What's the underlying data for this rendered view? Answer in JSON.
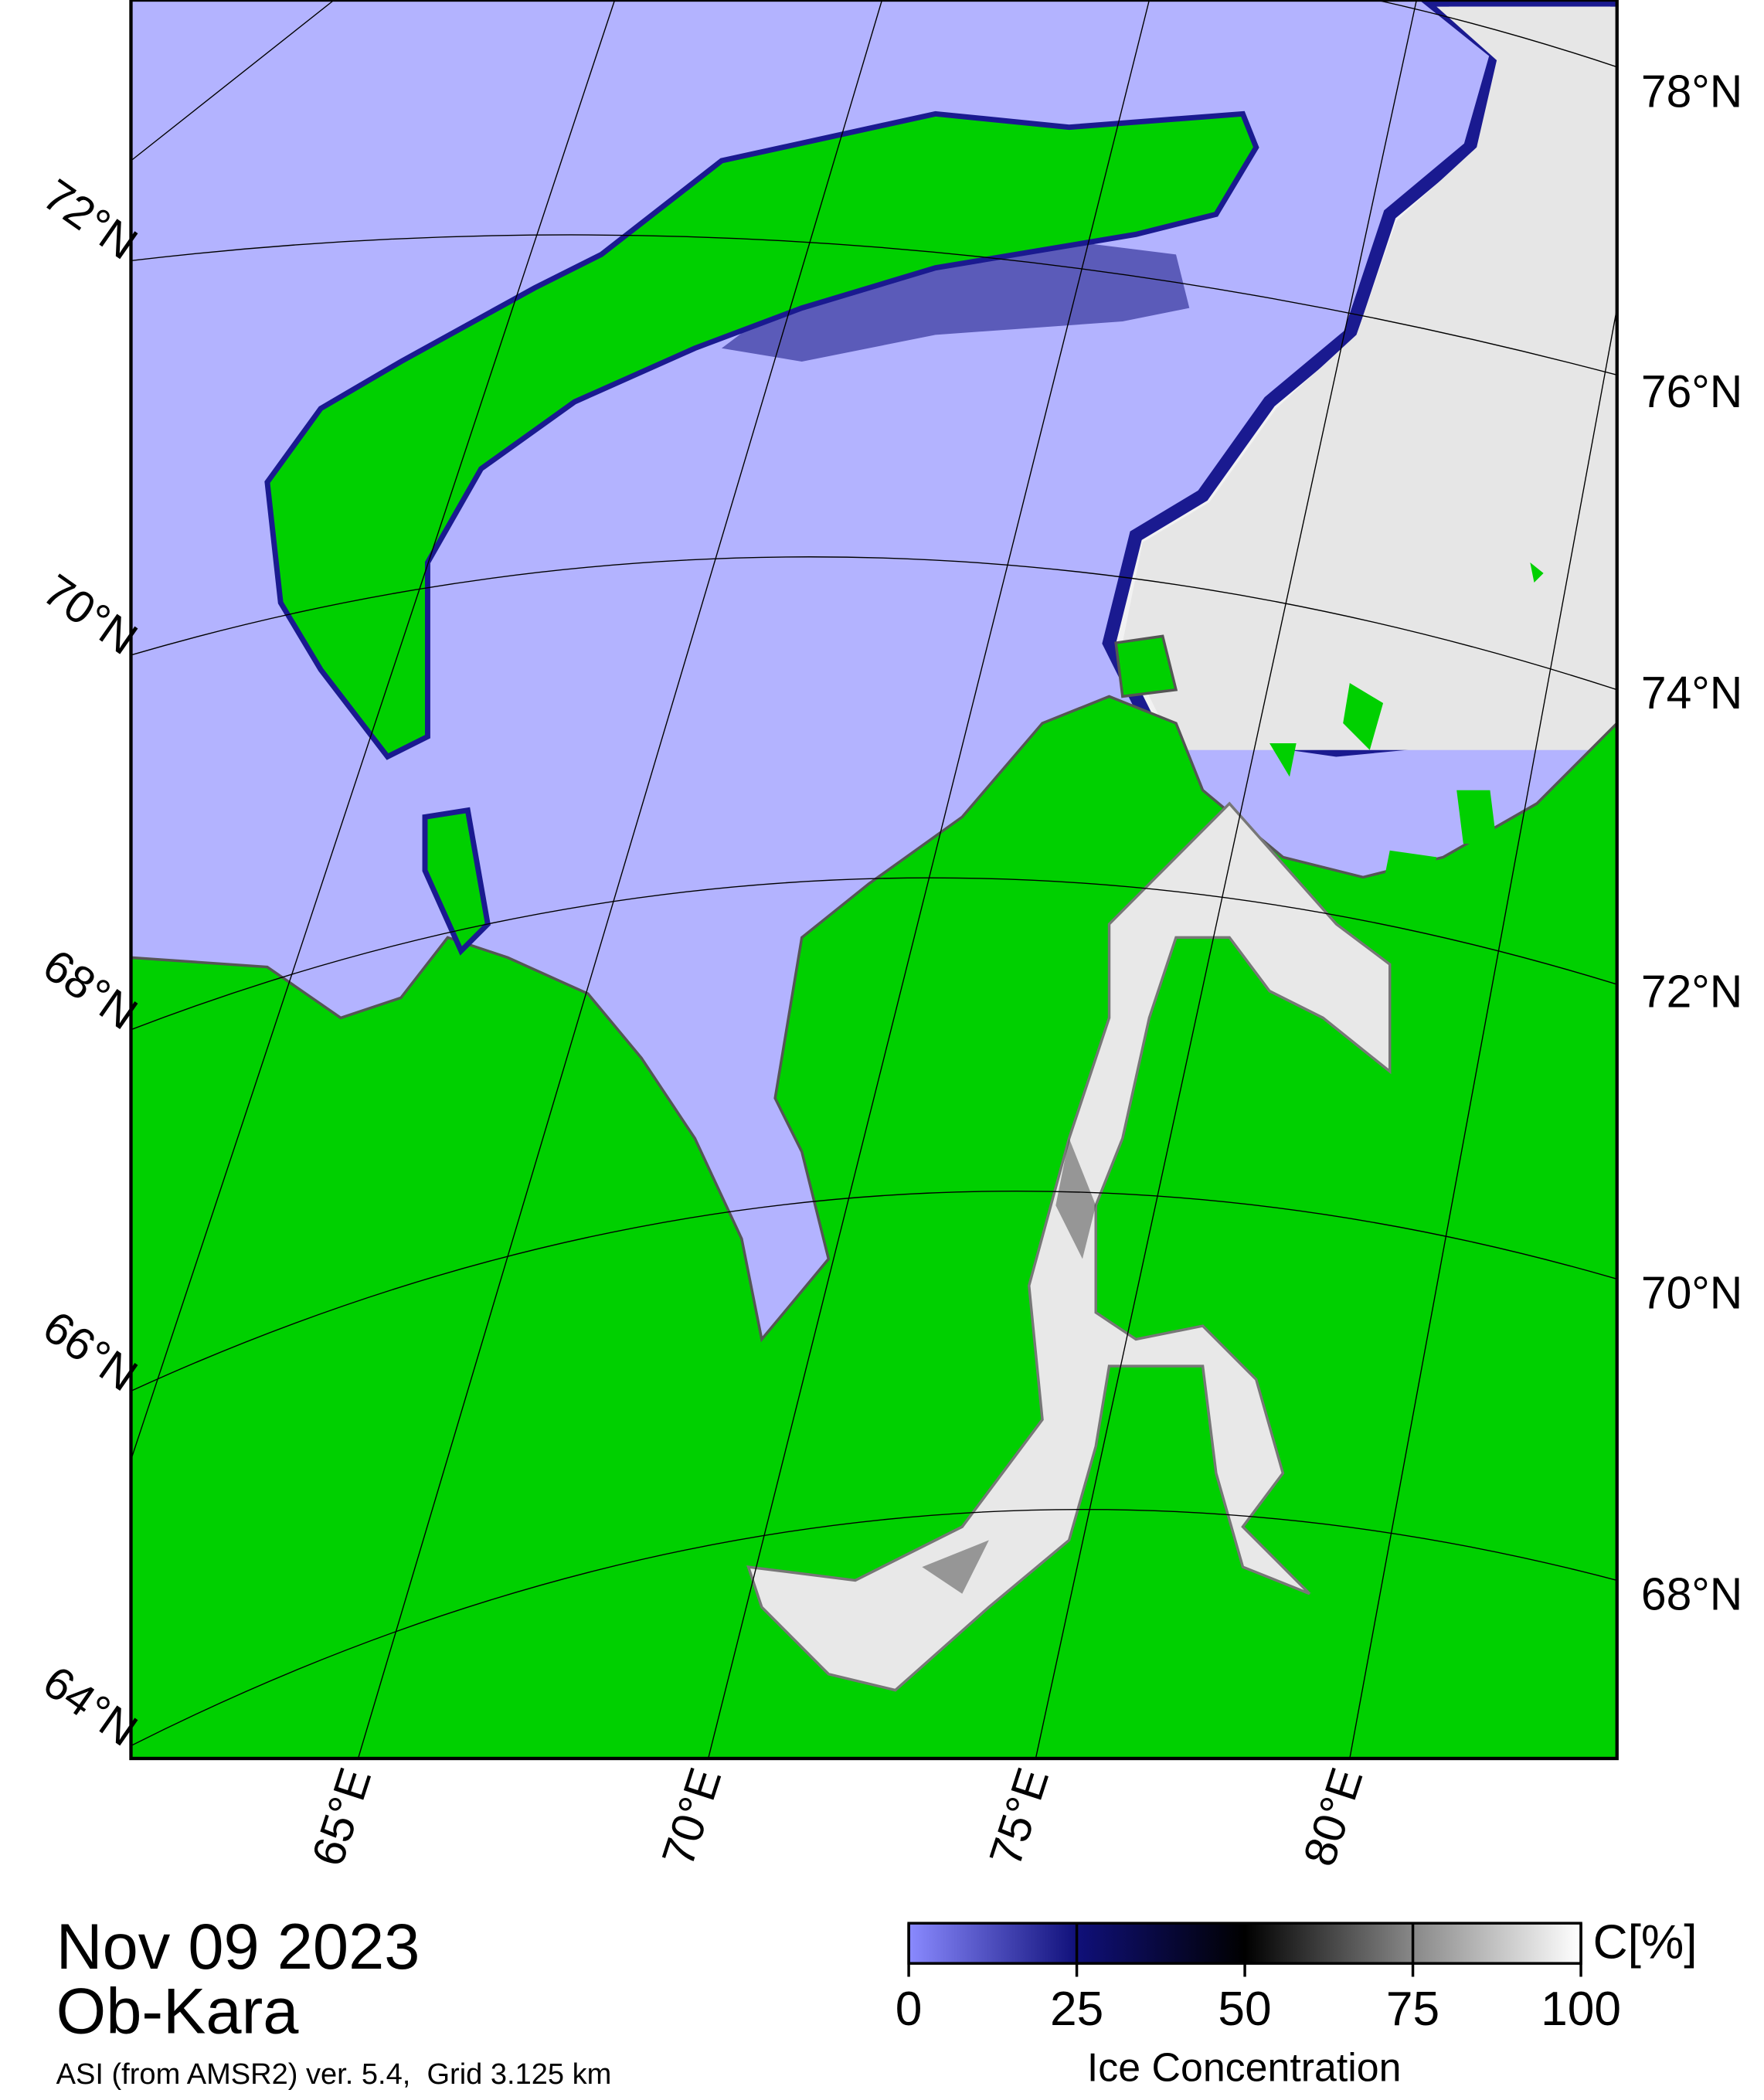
{
  "map": {
    "lat_labels_right": [
      "78°N",
      "76°N",
      "74°N",
      "72°N",
      "70°N",
      "68°N"
    ],
    "lat_labels_left": [
      "72°N",
      "70°N",
      "68°N",
      "66°N",
      "64°N"
    ],
    "lon_labels": [
      "65°E",
      "70°E",
      "75°E",
      "80°E"
    ]
  },
  "date": "Nov 09 2023",
  "region": "Ob-Kara",
  "product": "ASI (from AMSR2) ver. 5.4,  Grid 3.125 km",
  "colorbar": {
    "title": "Ice Concentration",
    "unit": "C[%]",
    "lim": [
      0,
      100
    ],
    "ticks": [
      0,
      25,
      50,
      75,
      100
    ]
  }
}
